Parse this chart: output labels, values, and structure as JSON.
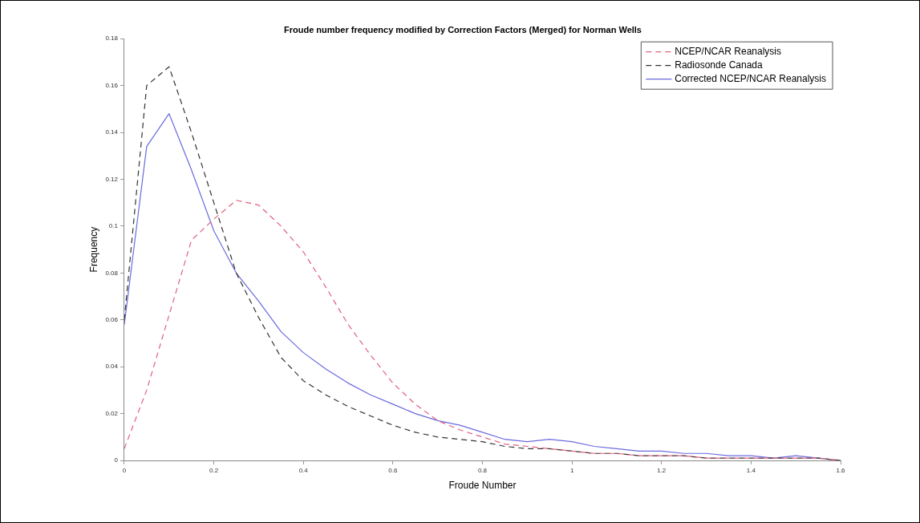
{
  "chart_data": {
    "type": "line",
    "title": "Froude number frequency modified by Correction Factors (Merged) for Norman Wells",
    "xlabel": "Froude Number",
    "ylabel": "Frequency",
    "x": [
      0,
      0.05,
      0.1,
      0.15,
      0.2,
      0.25,
      0.3,
      0.35,
      0.4,
      0.45,
      0.5,
      0.55,
      0.6,
      0.65,
      0.7,
      0.75,
      0.8,
      0.85,
      0.9,
      0.95,
      1.0,
      1.05,
      1.1,
      1.15,
      1.2,
      1.25,
      1.3,
      1.35,
      1.4,
      1.45,
      1.5,
      1.55,
      1.6
    ],
    "series": [
      {
        "name": "NCEP/NCAR Reanalysis",
        "color": "#e0607e",
        "line_style": "dashed",
        "values": [
          0.005,
          0.03,
          0.062,
          0.094,
          0.103,
          0.111,
          0.109,
          0.1,
          0.089,
          0.074,
          0.058,
          0.045,
          0.033,
          0.024,
          0.017,
          0.013,
          0.01,
          0.007,
          0.006,
          0.005,
          0.004,
          0.003,
          0.003,
          0.002,
          0.002,
          0.002,
          0.001,
          0.001,
          0.001,
          0.001,
          0.001,
          0.001,
          0
        ]
      },
      {
        "name": "Radiosonde Canada",
        "color": "#333333",
        "line_style": "dashed",
        "values": [
          0.06,
          0.16,
          0.168,
          0.14,
          0.11,
          0.08,
          0.061,
          0.044,
          0.034,
          0.028,
          0.023,
          0.019,
          0.015,
          0.012,
          0.01,
          0.009,
          0.008,
          0.006,
          0.005,
          0.005,
          0.004,
          0.003,
          0.003,
          0.002,
          0.002,
          0.002,
          0.001,
          0.001,
          0.001,
          0.001,
          0.001,
          0.001,
          0
        ]
      },
      {
        "name": "Corrected NCEP/NCAR Reanalysis",
        "color": "#6a6adf",
        "line_style": "solid",
        "values": [
          0.058,
          0.134,
          0.148,
          0.124,
          0.098,
          0.08,
          0.068,
          0.055,
          0.046,
          0.039,
          0.033,
          0.028,
          0.024,
          0.02,
          0.017,
          0.015,
          0.012,
          0.009,
          0.008,
          0.009,
          0.008,
          0.006,
          0.005,
          0.004,
          0.004,
          0.003,
          0.003,
          0.002,
          0.002,
          0.001,
          0.002,
          0.001,
          0
        ]
      }
    ],
    "xlim": [
      0,
      1.6
    ],
    "xticks": [
      0,
      0.2,
      0.4,
      0.6,
      0.8,
      1,
      1.2,
      1.4,
      1.6
    ],
    "ylim": [
      0,
      0.18
    ],
    "yticks": [
      0,
      0.02,
      0.04,
      0.06,
      0.08,
      0.1,
      0.12,
      0.14,
      0.16,
      0.18
    ],
    "grid": false,
    "legend": "top right",
    "marker": "none"
  }
}
